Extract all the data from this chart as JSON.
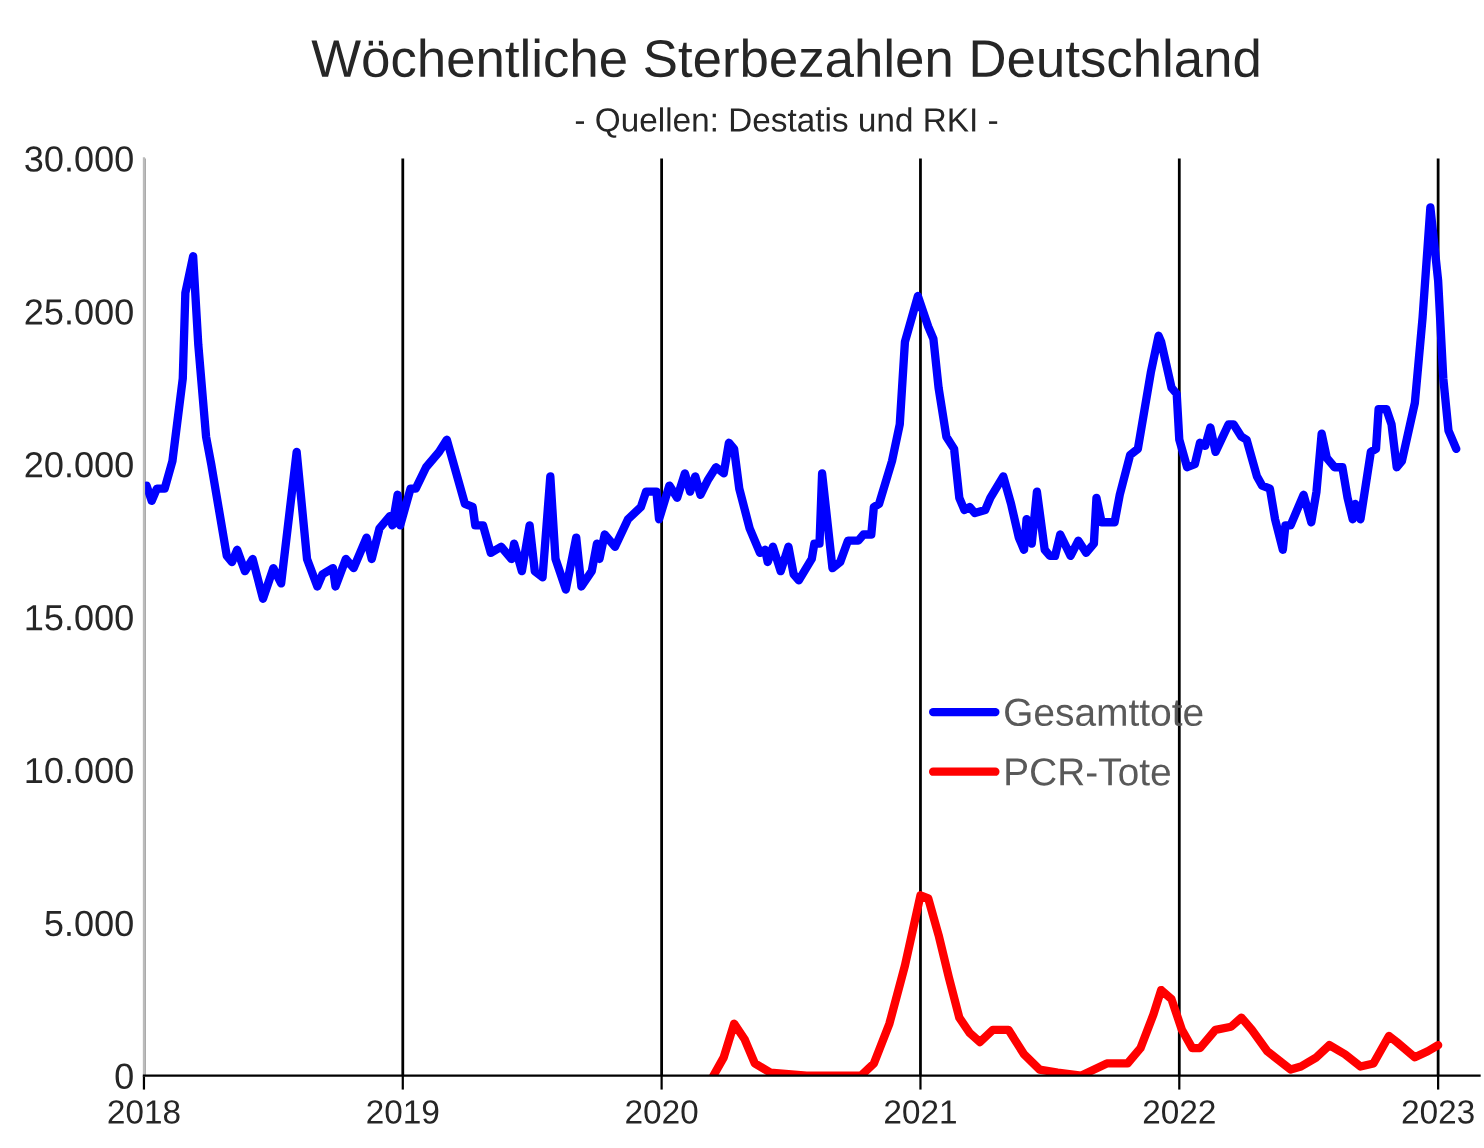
{
  "chart_data": {
    "type": "line",
    "title": "Wöchentliche Sterbezahlen Deutschland",
    "subtitle": "- Quellen: Destatis und RKI -",
    "xlim": [
      2018,
      2023.16
    ],
    "xticks": [
      2018,
      2019,
      2020,
      2021,
      2022,
      2023
    ],
    "ylim": [
      0,
      30000
    ],
    "yticks": [
      {
        "value": 0,
        "label": "0"
      },
      {
        "value": 5000,
        "label": "5.000"
      },
      {
        "value": 10000,
        "label": "10.000"
      },
      {
        "value": 15000,
        "label": "15.000"
      },
      {
        "value": 20000,
        "label": "20.000"
      },
      {
        "value": 25000,
        "label": "25.000"
      },
      {
        "value": 30000,
        "label": "30.000"
      }
    ],
    "grid": "x",
    "legend": "right",
    "marker": "none",
    "line_style": "solid",
    "series": [
      {
        "name": "Gesamttote",
        "color": "#0000ff",
        "x": [
          2018.01,
          2018.03,
          2018.05,
          2018.08,
          2018.11,
          2018.15,
          2018.16,
          2018.19,
          2018.21,
          2018.24,
          2018.26,
          2018.32,
          2018.34,
          2018.36,
          2018.39,
          2018.42,
          2018.46,
          2018.5,
          2018.53,
          2018.59,
          2018.63,
          2018.67,
          2018.69,
          2018.73,
          2018.74,
          2018.78,
          2018.81,
          2018.86,
          2018.88,
          2018.91,
          2018.95,
          2018.96,
          2018.98,
          2018.99,
          2019.03,
          2019.05,
          2019.09,
          2019.14,
          2019.17,
          2019.24,
          2019.27,
          2019.28,
          2019.31,
          2019.34,
          2019.38,
          2019.42,
          2019.43,
          2019.46,
          2019.49,
          2019.51,
          2019.54,
          2019.57,
          2019.59,
          2019.63,
          2019.67,
          2019.69,
          2019.73,
          2019.75,
          2019.76,
          2019.78,
          2019.82,
          2019.87,
          2019.92,
          2019.94,
          2019.98,
          2019.99,
          2020.03,
          2020.06,
          2020.09,
          2020.11,
          2020.13,
          2020.15,
          2020.18,
          2020.21,
          2020.24,
          2020.26,
          2020.28,
          2020.3,
          2020.34,
          2020.38,
          2020.4,
          2020.41,
          2020.43,
          2020.46,
          2020.49,
          2020.51,
          2020.53,
          2020.58,
          2020.59,
          2020.61,
          2020.62,
          2020.66,
          2020.69,
          2020.72,
          2020.76,
          2020.78,
          2020.81,
          2020.82,
          2020.84,
          2020.89,
          2020.92,
          2020.94,
          2020.99,
          2021.03,
          2021.05,
          2021.07,
          2021.1,
          2021.13,
          2021.15,
          2021.17,
          2021.19,
          2021.21,
          2021.25,
          2021.27,
          2021.32,
          2021.35,
          2021.38,
          2021.4,
          2021.41,
          2021.43,
          2021.45,
          2021.48,
          2021.5,
          2021.52,
          2021.54,
          2021.58,
          2021.61,
          2021.64,
          2021.67,
          2021.68,
          2021.7,
          2021.75,
          2021.77,
          2021.81,
          2021.84,
          2021.89,
          2021.92,
          2021.93,
          2021.97,
          2021.99,
          2022.0,
          2022.03,
          2022.06,
          2022.08,
          2022.1,
          2022.12,
          2022.14,
          2022.19,
          2022.21,
          2022.24,
          2022.26,
          2022.3,
          2022.32,
          2022.35,
          2022.37,
          2022.4,
          2022.41,
          2022.43,
          2022.48,
          2022.51,
          2022.53,
          2022.55,
          2022.57,
          2022.6,
          2022.63,
          2022.65,
          2022.67,
          2022.68,
          2022.7,
          2022.74,
          2022.76,
          2022.77,
          2022.8,
          2022.82,
          2022.84,
          2022.86,
          2022.91,
          2022.94,
          2022.97,
          2023.0,
          2023.02,
          2023.04,
          2023.07
        ],
        "values": [
          19300,
          18800,
          19200,
          19200,
          20100,
          22800,
          25600,
          26800,
          23900,
          20900,
          20000,
          17000,
          16800,
          17200,
          16500,
          16900,
          15600,
          16600,
          16100,
          20400,
          16900,
          16000,
          16400,
          16600,
          16000,
          16900,
          16600,
          17600,
          16900,
          17900,
          18300,
          18000,
          19000,
          18000,
          19200,
          19200,
          19900,
          20400,
          20800,
          18700,
          18600,
          18000,
          18000,
          17100,
          17300,
          16900,
          17400,
          16500,
          18000,
          16500,
          16300,
          19600,
          16900,
          15900,
          17600,
          16000,
          16500,
          17400,
          16900,
          17700,
          17300,
          18200,
          18600,
          19100,
          19100,
          18200,
          19300,
          18900,
          19700,
          19100,
          19600,
          19000,
          19500,
          19900,
          19700,
          20700,
          20500,
          19200,
          17900,
          17100,
          17200,
          16800,
          17300,
          16500,
          17300,
          16400,
          16200,
          16900,
          17400,
          17400,
          19700,
          16600,
          16800,
          17500,
          17500,
          17700,
          17700,
          18600,
          18700,
          20100,
          21300,
          24000,
          25500,
          24500,
          24100,
          22500,
          20900,
          20500,
          18900,
          18500,
          18600,
          18400,
          18500,
          18900,
          19600,
          18700,
          17600,
          17200,
          18200,
          17400,
          19100,
          17200,
          17000,
          17000,
          17700,
          17000,
          17500,
          17100,
          17400,
          18900,
          18100,
          18100,
          19000,
          20300,
          20500,
          23000,
          24200,
          24000,
          22500,
          22300,
          20800,
          19900,
          20000,
          20700,
          20600,
          21200,
          20400,
          21300,
          21300,
          20900,
          20800,
          19600,
          19300,
          19200,
          18200,
          17200,
          18000,
          18000,
          19000,
          18100,
          19100,
          21000,
          20200,
          19900,
          19900,
          18900,
          18200,
          18700,
          18200,
          20400,
          20500,
          21800,
          21800,
          21300,
          19900,
          20100,
          22000,
          24800,
          28400,
          26000,
          22800,
          21100,
          20500
        ]
      },
      {
        "name": "PCR-Tote",
        "color": "#ff0000",
        "x": [
          2020.2,
          2020.24,
          2020.28,
          2020.32,
          2020.36,
          2020.42,
          2020.56,
          2020.77,
          2020.82,
          2020.88,
          2020.94,
          2021.0,
          2021.03,
          2021.07,
          2021.11,
          2021.15,
          2021.19,
          2021.23,
          2021.28,
          2021.34,
          2021.4,
          2021.46,
          2021.53,
          2021.62,
          2021.72,
          2021.8,
          2021.85,
          2021.9,
          2021.93,
          2021.97,
          2022.01,
          2022.05,
          2022.08,
          2022.14,
          2022.2,
          2022.24,
          2022.28,
          2022.34,
          2022.43,
          2022.47,
          2022.53,
          2022.58,
          2022.64,
          2022.7,
          2022.75,
          2022.81,
          2022.84,
          2022.91,
          2022.96,
          2023.0
        ],
        "values": [
          0,
          600,
          1700,
          1200,
          400,
          100,
          0,
          0,
          400,
          1700,
          3600,
          5900,
          5800,
          4600,
          3200,
          1900,
          1400,
          1100,
          1500,
          1500,
          700,
          200,
          100,
          0,
          400,
          400,
          900,
          2000,
          2800,
          2500,
          1500,
          900,
          900,
          1500,
          1600,
          1900,
          1500,
          800,
          200,
          300,
          600,
          1000,
          700,
          300,
          400,
          1300,
          1100,
          600,
          800,
          1000
        ]
      }
    ]
  }
}
